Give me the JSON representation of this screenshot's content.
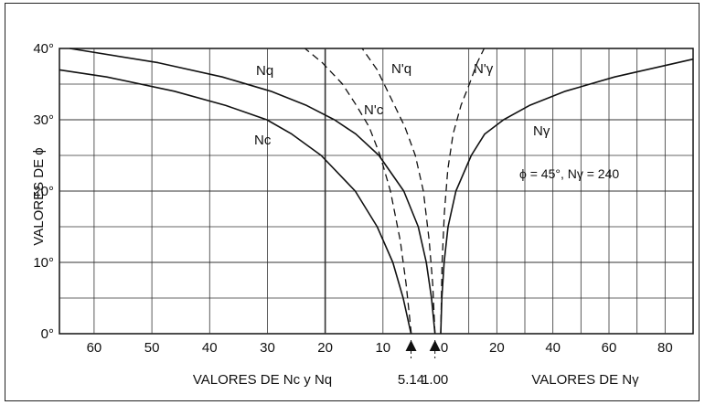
{
  "chart_data": {
    "type": "line",
    "title": "",
    "ylabel": "VALORES DE ϕ",
    "xlabel_left": "VALORES DE Nc y Nq",
    "xlabel_right": "VALORES DE Nγ",
    "y_ticks": [
      "0°",
      "10°",
      "20°",
      "30°",
      "40°"
    ],
    "x_ticks_left": [
      "60",
      "50",
      "40",
      "30",
      "20",
      "10",
      "0"
    ],
    "x_ticks_right": [
      "20",
      "40",
      "60",
      "80"
    ],
    "ylim": [
      0,
      40
    ],
    "xlim_left": [
      66,
      0
    ],
    "xlim_right": [
      0,
      90
    ],
    "markers": [
      {
        "label": "5.14",
        "value": 5.14
      },
      {
        "label": "1.00",
        "value": 1.0
      }
    ],
    "note": "ϕ = 45°, Nγ = 240",
    "series": [
      {
        "name": "Nc",
        "side": "left",
        "style": "solid",
        "x": [
          5.14,
          6.5,
          8.3,
          11.0,
          14.8,
          20.7,
          25.8,
          30.1,
          37.2,
          46.1,
          57.8,
          66.0
        ],
        "y": [
          0,
          5,
          10,
          15,
          20,
          25,
          28,
          30,
          32,
          34,
          36,
          37
        ]
      },
      {
        "name": "Nq",
        "side": "left",
        "style": "solid",
        "x": [
          1.0,
          1.6,
          2.5,
          3.9,
          6.4,
          10.7,
          14.7,
          18.4,
          23.2,
          29.4,
          37.8,
          48.9,
          64.2
        ],
        "y": [
          0,
          5,
          10,
          15,
          20,
          25,
          28,
          30,
          32,
          34,
          36,
          38,
          40
        ]
      },
      {
        "name": "N'c",
        "side": "left",
        "style": "dashed",
        "x": [
          5.1,
          6.0,
          7.0,
          8.7,
          10.5,
          12.4,
          14.6,
          17.0,
          20.5,
          23.5
        ],
        "y": [
          0,
          7,
          13,
          20,
          25,
          29,
          32,
          35,
          38,
          40
        ]
      },
      {
        "name": "N'q",
        "side": "left",
        "style": "dashed",
        "x": [
          1.0,
          1.4,
          2.0,
          3.0,
          4.4,
          6.2,
          8.6,
          11.0,
          13.6
        ],
        "y": [
          0,
          7,
          13,
          20,
          25,
          29,
          33,
          37,
          40
        ]
      },
      {
        "name": "Nγ",
        "side": "right",
        "style": "solid",
        "x": [
          0,
          0.4,
          1.2,
          2.6,
          5.4,
          10.9,
          15.7,
          22.4,
          31.6,
          44.4,
          62.0,
          90.0
        ],
        "y": [
          0,
          5,
          10,
          15,
          20,
          25,
          28,
          30,
          32,
          34,
          36,
          38.5
        ]
      },
      {
        "name": "N'γ",
        "side": "right",
        "style": "dashed",
        "x": [
          0,
          0.5,
          1.3,
          2.5,
          4.4,
          7.2,
          10.2,
          13.0,
          15.5
        ],
        "y": [
          0,
          10,
          17,
          23,
          28,
          32,
          35,
          38,
          40
        ]
      }
    ]
  }
}
